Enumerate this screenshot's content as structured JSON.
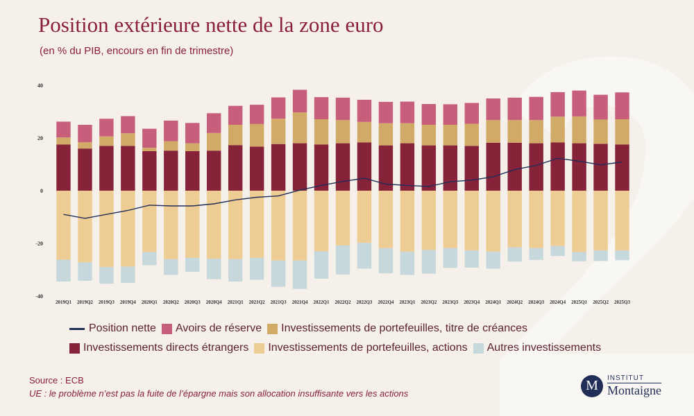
{
  "title": "Position extérieure nette de la zone euro",
  "subtitle": "(en % du PIB, encours en fin de trimestre)",
  "source": "Source : ECB",
  "note": "UE : le problème n’est pas la fuite de l’épargne mais son allocation insuffisante vers les actions",
  "logo": {
    "badge": "M",
    "top": "INSTITUT",
    "bottom": "Montaigne"
  },
  "colors": {
    "line": "#1f2d57",
    "reserve": "#c75f7c",
    "debt": "#d2aa68",
    "fdi": "#862339",
    "equity": "#eecd94",
    "other": "#c7d8dc",
    "text": "#5a1f2e",
    "title": "#8a1f38"
  },
  "legend": [
    {
      "key": "line",
      "label": "Position nette",
      "kind": "line"
    },
    {
      "key": "reserve",
      "label": "Avoirs de réserve",
      "kind": "box"
    },
    {
      "key": "debt",
      "label": "Investissements de portefeuilles, titre de créances",
      "kind": "box"
    },
    {
      "key": "fdi",
      "label": "Investissements directs étrangers",
      "kind": "box"
    },
    {
      "key": "equity",
      "label": "Investissements de portefeuilles, actions",
      "kind": "box"
    },
    {
      "key": "other",
      "label": "Autres investissements",
      "kind": "box"
    }
  ],
  "chart_data": {
    "type": "bar",
    "stacked": true,
    "title": "Position extérieure nette de la zone euro",
    "subtitle": "(en % du PIB, encours en fin de trimestre)",
    "ylim": [
      -40,
      40
    ],
    "yticks": [
      40,
      20,
      0,
      -20,
      -40
    ],
    "grid": false,
    "legend_position": "bottom",
    "categories": [
      "2019Q1",
      "2019Q2",
      "2019Q3",
      "2019Q4",
      "2020Q1",
      "2020Q2",
      "2020Q3",
      "2020Q4",
      "2021Q1",
      "2021Q2",
      "2021Q3",
      "2021Q4",
      "2022Q1",
      "2022Q2",
      "2022Q3",
      "2022Q4",
      "2023Q1",
      "2023Q2",
      "2023Q3",
      "2023Q4",
      "2024Q1",
      "2024Q2",
      "2024Q3",
      "2024Q4",
      "2025Q1",
      "2025Q2",
      "2025Q3"
    ],
    "series": [
      {
        "name": "Investissements directs étrangers",
        "key": "fdi",
        "type": "bar",
        "values": [
          17.5,
          16,
          17,
          17,
          15,
          15.2,
          15,
          15.2,
          17.3,
          16.7,
          17.7,
          18,
          17.5,
          18,
          18.3,
          17.2,
          18,
          17.2,
          17.2,
          17,
          18.2,
          18.2,
          18,
          18.3,
          18,
          17.8,
          17.5
        ]
      },
      {
        "name": "Investissements de portefeuilles, titre de créances",
        "key": "debt",
        "type": "bar",
        "values": [
          2.7,
          2.4,
          3.6,
          4.8,
          1.3,
          3.6,
          3,
          6.7,
          7.7,
          8.6,
          9.6,
          11.7,
          9.6,
          8.8,
          7.8,
          8.4,
          7.6,
          7.8,
          7.8,
          8.4,
          8.6,
          8.6,
          8.8,
          9.8,
          10.2,
          9.2,
          9.6
        ]
      },
      {
        "name": "Avoirs de réserve",
        "key": "reserve",
        "type": "bar",
        "values": [
          6,
          6.6,
          6.7,
          6.5,
          7.2,
          7.8,
          7.7,
          7.5,
          7.2,
          7.3,
          8.1,
          8.6,
          8.4,
          8.5,
          8.4,
          8.1,
          8.2,
          7.9,
          7.8,
          7.9,
          8.2,
          8.5,
          8.8,
          9.3,
          9.8,
          9.4,
          10.2
        ]
      },
      {
        "name": "Investissements de portefeuilles, actions",
        "key": "equity",
        "type": "bar",
        "values": [
          -26.2,
          -27.2,
          -29,
          -28.8,
          -23.3,
          -26,
          -25.5,
          -25.8,
          -26,
          -25.5,
          -26.5,
          -26.5,
          -23,
          -20.8,
          -19.8,
          -21.8,
          -23.2,
          -22.5,
          -21.8,
          -22.7,
          -23.2,
          -21.5,
          -21.8,
          -21,
          -23.3,
          -22.7,
          -22.7
        ]
      },
      {
        "name": "Autres investissements",
        "key": "other",
        "type": "bar",
        "values": [
          -8.3,
          -7,
          -6.3,
          -6.2,
          -5,
          -6,
          -5.3,
          -7.8,
          -8.5,
          -8.3,
          -10,
          -10.8,
          -10.4,
          -11,
          -9.8,
          -9.6,
          -8.8,
          -9,
          -7.5,
          -6.5,
          -6.4,
          -5.4,
          -4.5,
          -3.8,
          -3.5,
          -4,
          -3.7
        ]
      },
      {
        "name": "Position nette",
        "key": "line",
        "type": "line",
        "values": [
          -9,
          -10.5,
          -9,
          -7.5,
          -5.5,
          -5.8,
          -5.8,
          -5,
          -3.5,
          -2.5,
          -2,
          0.2,
          2,
          3.5,
          4.7,
          2.5,
          2,
          1.6,
          3.4,
          4,
          5.3,
          8,
          9.6,
          12.3,
          11.2,
          9.8,
          10.9
        ]
      }
    ]
  }
}
